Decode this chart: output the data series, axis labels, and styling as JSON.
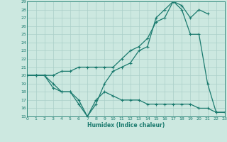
{
  "xlabel": "Humidex (Indice chaleur)",
  "xlim": [
    0,
    23
  ],
  "ylim": [
    15,
    29
  ],
  "xticks": [
    0,
    1,
    2,
    3,
    4,
    5,
    6,
    7,
    8,
    9,
    10,
    11,
    12,
    13,
    14,
    15,
    16,
    17,
    18,
    19,
    20,
    21,
    22,
    23
  ],
  "yticks": [
    15,
    16,
    17,
    18,
    19,
    20,
    21,
    22,
    23,
    24,
    25,
    26,
    27,
    28,
    29
  ],
  "bg_color": "#cce8e0",
  "line_color": "#1a7a6e",
  "grid_color": "#aacfc8",
  "font_color": "#1a7a6e",
  "line1_x": [
    0,
    1,
    2,
    3,
    4,
    5,
    6,
    7,
    8,
    9,
    10,
    11,
    12,
    13,
    14,
    15,
    16,
    17,
    18,
    19,
    20,
    21
  ],
  "line1_y": [
    20,
    20,
    20,
    20,
    20.5,
    20.5,
    21,
    21,
    21,
    21,
    21,
    22,
    23,
    23.5,
    24.5,
    26.5,
    27,
    29,
    28.5,
    27,
    28,
    27.5
  ],
  "line2_x": [
    0,
    1,
    2,
    3,
    4,
    5,
    6,
    7,
    8,
    9,
    10,
    11,
    12,
    13,
    14,
    15,
    16,
    17,
    18,
    19,
    20,
    21,
    22,
    23
  ],
  "line2_y": [
    20,
    20,
    20,
    19,
    18,
    18,
    17,
    15,
    16.5,
    19,
    20.5,
    21,
    21.5,
    23,
    23.5,
    27,
    28,
    29,
    28,
    25,
    25,
    19,
    15.5,
    15.5
  ],
  "line3_x": [
    0,
    1,
    2,
    3,
    4,
    5,
    6,
    7,
    8,
    9,
    10,
    11,
    12,
    13,
    14,
    15,
    16,
    17,
    18,
    19,
    20,
    21,
    22,
    23
  ],
  "line3_y": [
    20,
    20,
    20,
    18.5,
    18,
    18,
    16.5,
    15,
    17,
    18,
    17.5,
    17,
    17,
    17,
    16.5,
    16.5,
    16.5,
    16.5,
    16.5,
    16.5,
    16,
    16,
    15.5,
    15.5
  ]
}
